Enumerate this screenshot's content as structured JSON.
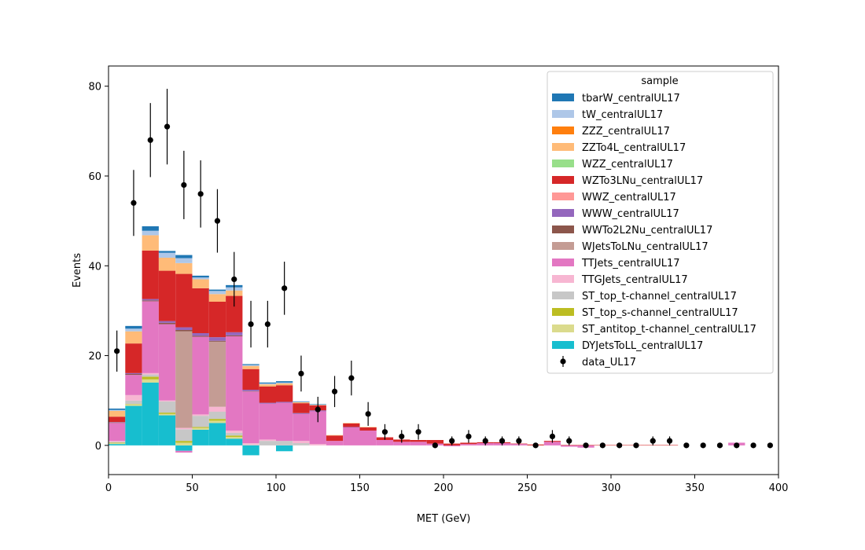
{
  "chart_data": {
    "type": "bar",
    "subtype": "stacked-histogram-with-data-points",
    "xlabel": "MET (GeV)",
    "ylabel": "Events",
    "xlim": [
      0,
      400
    ],
    "ylim": [
      -6.5,
      84.5
    ],
    "xticks": [
      0,
      50,
      100,
      150,
      200,
      250,
      300,
      350,
      400
    ],
    "yticks": [
      0,
      20,
      40,
      60,
      80
    ],
    "grid": false,
    "legend_title": "sample",
    "legend_position": "top-right",
    "bin_edges": [
      0,
      10,
      20,
      30,
      40,
      50,
      60,
      70,
      80,
      90,
      100,
      110,
      120,
      130,
      140,
      150,
      160,
      170,
      180,
      190,
      200,
      210,
      220,
      230,
      240,
      250,
      260,
      270,
      280,
      290,
      300,
      310,
      320,
      330,
      340,
      350,
      360,
      370,
      380,
      390,
      400
    ],
    "series": [
      {
        "name": "DYJetsToLL_centralUL17",
        "color": "#17becf",
        "values": [
          0.3,
          8.8,
          14.0,
          6.7,
          -1.2,
          3.5,
          5.0,
          1.5,
          -2.2,
          0,
          -1.3,
          0,
          0,
          0,
          0,
          0,
          0,
          0,
          0,
          0,
          0,
          0,
          0,
          0,
          0,
          0,
          0,
          0,
          0,
          0,
          0,
          0,
          0,
          0,
          0,
          0,
          0,
          0,
          0,
          0
        ]
      },
      {
        "name": "ST_antitop_t-channel_centralUL17",
        "color": "#dbdb8d",
        "values": [
          0.2,
          0.3,
          0.7,
          0.3,
          0.6,
          0.4,
          0.5,
          0.4,
          0,
          0,
          0,
          0,
          0,
          0,
          0,
          0,
          0,
          0,
          0,
          0,
          0,
          0,
          0,
          0,
          0,
          0,
          0,
          0,
          0,
          0,
          0,
          0,
          0,
          0,
          0,
          0,
          0,
          0,
          0,
          0
        ]
      },
      {
        "name": "ST_top_s-channel_centralUL17",
        "color": "#bcbd22",
        "values": [
          0.1,
          0.1,
          0.6,
          0.3,
          0.4,
          0.2,
          0.4,
          0.3,
          0,
          0,
          0,
          0,
          0,
          0,
          0,
          0,
          0,
          0,
          0,
          0,
          0,
          0,
          0,
          0,
          0,
          0,
          0,
          0,
          0,
          0,
          0,
          0,
          0,
          0,
          0,
          0,
          0,
          0,
          0,
          0
        ]
      },
      {
        "name": "ST_top_t-channel_centralUL17",
        "color": "#c7c7c7",
        "values": [
          0.2,
          0.8,
          0.5,
          2.5,
          2.6,
          2.5,
          1.6,
          0.6,
          0.2,
          1.0,
          1.0,
          0.5,
          0,
          0,
          0,
          0,
          0,
          0,
          0,
          0,
          0,
          0,
          0,
          0,
          0,
          0,
          0,
          0,
          0,
          0,
          0,
          0,
          0,
          0,
          0,
          0,
          0,
          0,
          0,
          0
        ]
      },
      {
        "name": "TTGJets_centralUL17",
        "color": "#f7b6d2",
        "values": [
          0.2,
          1.2,
          0.3,
          0.2,
          0.3,
          0.3,
          1.1,
          0.5,
          0.3,
          0.3,
          0,
          0.5,
          0.3,
          0,
          0,
          0,
          0,
          0,
          0,
          0,
          0,
          0,
          0,
          0,
          0,
          0,
          0,
          0,
          0,
          0,
          0,
          0,
          0,
          0,
          0,
          0,
          0,
          0,
          0,
          0
        ]
      },
      {
        "name": "TTJets_centralUL17",
        "color": "#e377c2",
        "values": [
          4.0,
          4.5,
          16.0,
          17.0,
          -0.4,
          17.3,
          0,
          21.0,
          11.5,
          8.0,
          8.5,
          6.0,
          7.3,
          1.0,
          4.0,
          3.3,
          1.2,
          0.8,
          0.8,
          0.4,
          -0.2,
          0.3,
          0.5,
          0.5,
          0.3,
          0,
          0.8,
          -0.3,
          -0.5,
          0,
          0,
          0,
          0,
          0,
          0,
          0,
          0,
          0.6,
          0,
          0
        ]
      },
      {
        "name": "WJetsToLNu_centralUL17",
        "color": "#c49c94",
        "values": [
          0,
          0,
          0,
          0,
          21.5,
          0,
          14.5,
          0,
          0,
          0,
          0,
          0,
          0,
          0,
          0,
          0,
          0,
          0,
          0,
          0,
          0,
          0,
          0,
          0,
          0,
          0,
          0,
          0,
          0,
          0,
          0,
          0,
          0,
          0,
          0,
          0,
          0,
          0,
          0,
          0
        ]
      },
      {
        "name": "WWTo2L2Nu_centralUL17",
        "color": "#8c564b",
        "values": [
          0.1,
          0.2,
          0.2,
          0.3,
          0.3,
          0.2,
          0.2,
          0.2,
          0.1,
          0,
          0,
          0,
          0,
          0,
          0,
          0,
          0,
          0,
          0,
          0,
          0,
          0,
          0,
          0,
          0,
          0,
          0,
          0,
          0,
          0,
          0,
          0,
          0,
          0,
          0,
          0,
          0,
          0,
          0,
          0
        ]
      },
      {
        "name": "WWW_centralUL17",
        "color": "#9467bd",
        "values": [
          0.1,
          0.2,
          0.3,
          0.4,
          0.6,
          0.6,
          0.8,
          0.7,
          0.3,
          0.2,
          0.2,
          0.2,
          0.2,
          0,
          0.1,
          0,
          0,
          0,
          0,
          0,
          0,
          0,
          0,
          0,
          0,
          0,
          0,
          0,
          0,
          0,
          0,
          0,
          0,
          0,
          0,
          0,
          0,
          0,
          0,
          0
        ]
      },
      {
        "name": "WWZ_centralUL17",
        "color": "#ff9896",
        "values": [
          0,
          0,
          0,
          0,
          0,
          0,
          0,
          0,
          0,
          0,
          0,
          0,
          0,
          0,
          0,
          0,
          0,
          0,
          0,
          0,
          0,
          0,
          0,
          0,
          0,
          0,
          0,
          0,
          0,
          0,
          0,
          0,
          0,
          0,
          0,
          0,
          0,
          0,
          0,
          0
        ]
      },
      {
        "name": "WZTo3LNu_centralUL17",
        "color": "#d62728",
        "values": [
          1.2,
          6.6,
          10.8,
          11.2,
          11.9,
          10.0,
          7.9,
          8.1,
          4.6,
          3.6,
          3.7,
          2.2,
          1.1,
          1.2,
          0.8,
          0.7,
          0.6,
          0.5,
          0.4,
          0.8,
          0.4,
          0.3,
          0.2,
          0.2,
          0.1,
          0.2,
          0.2,
          0.1,
          0.1,
          0.1,
          0.1,
          0.1,
          0.1,
          0.1,
          0,
          0,
          0,
          0,
          0,
          0
        ]
      },
      {
        "name": "WZZ_centralUL17",
        "color": "#98df8a",
        "values": [
          0,
          0,
          0,
          0,
          0,
          0,
          0,
          0,
          0,
          0,
          0,
          0,
          0,
          0,
          0,
          0,
          0,
          0,
          0,
          0,
          0,
          0,
          0,
          0,
          0,
          0,
          0,
          0,
          0,
          0,
          0,
          0,
          0,
          0,
          0,
          0,
          0,
          0,
          0,
          0
        ]
      },
      {
        "name": "ZZTo4L_centralUL17",
        "color": "#ffbb78",
        "values": [
          1.3,
          2.7,
          3.4,
          2.9,
          2.4,
          2.0,
          1.7,
          1.2,
          0.7,
          0.5,
          0.4,
          0.2,
          0.1,
          0.1,
          0.1,
          0.1,
          0,
          0,
          0,
          0,
          0,
          0,
          0,
          0,
          0,
          0,
          0,
          0,
          0,
          0,
          0,
          0,
          0,
          0,
          0,
          0,
          0,
          0,
          0,
          0
        ]
      },
      {
        "name": "ZZZ_centralUL17",
        "color": "#ff7f0e",
        "values": [
          0,
          0,
          0,
          0,
          0,
          0,
          0,
          0,
          0,
          0,
          0,
          0,
          0,
          0,
          0,
          0,
          0,
          0,
          0,
          0,
          0,
          0,
          0,
          0,
          0,
          0,
          0,
          0,
          0,
          0,
          0,
          0,
          0,
          0,
          0,
          0,
          0,
          0,
          0,
          0
        ]
      },
      {
        "name": "tW_centralUL17",
        "color": "#aec7e8",
        "values": [
          0.2,
          0.6,
          1.0,
          1.1,
          1.1,
          0.4,
          0.7,
          0.7,
          0.2,
          0.2,
          0.2,
          0.1,
          0.1,
          0,
          0,
          0,
          0,
          0,
          0,
          0,
          0,
          0,
          0,
          0,
          0,
          0,
          0,
          0,
          0,
          0,
          0,
          0,
          0,
          0,
          0,
          0,
          0,
          0,
          0,
          0
        ]
      },
      {
        "name": "tbarW_centralUL17",
        "color": "#1f77b4",
        "values": [
          0.3,
          0.6,
          1.0,
          0.4,
          0.7,
          0.4,
          0.3,
          0.5,
          0.2,
          0.2,
          0.3,
          0.1,
          0.1,
          0,
          0,
          0,
          0,
          0,
          0,
          0,
          0,
          0,
          0,
          0,
          0,
          0,
          0,
          0,
          0,
          0,
          0,
          0,
          0,
          0,
          0,
          0,
          0,
          0,
          0,
          0
        ]
      }
    ],
    "data_points": {
      "name": "data_UL17",
      "color": "#000000",
      "x": [
        5,
        15,
        25,
        35,
        45,
        55,
        65,
        75,
        85,
        95,
        105,
        115,
        125,
        135,
        145,
        155,
        165,
        175,
        185,
        195,
        205,
        215,
        225,
        235,
        245,
        255,
        265,
        275,
        285,
        295,
        305,
        315,
        325,
        335,
        345,
        355,
        365,
        375,
        385,
        395
      ],
      "y": [
        21,
        54,
        68,
        71,
        58,
        56,
        50,
        37,
        27,
        27,
        35,
        16,
        8,
        12,
        15,
        7,
        3,
        2,
        3,
        0,
        1,
        2,
        1,
        1,
        1,
        0,
        2,
        1,
        0,
        0,
        0,
        0,
        1,
        1,
        0,
        0,
        0,
        0,
        0,
        0
      ]
    }
  }
}
